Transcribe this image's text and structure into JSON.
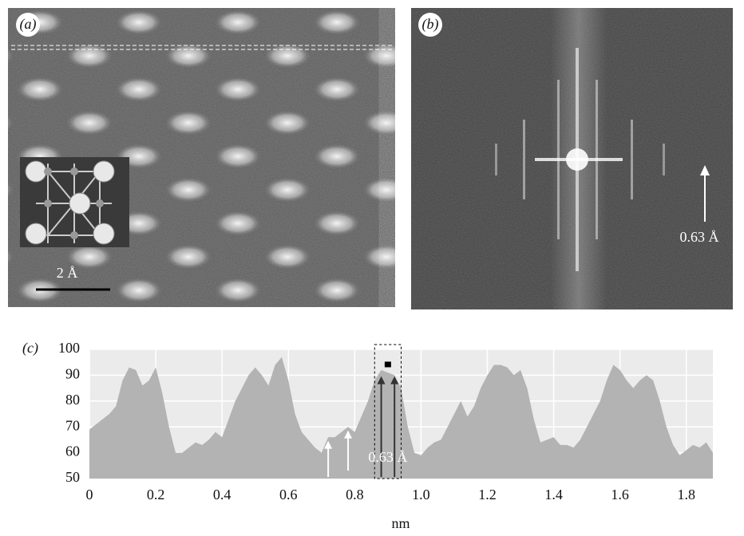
{
  "panels": {
    "a": {
      "label": "(a)",
      "scale": "2 Å"
    },
    "b": {
      "label": "(b)",
      "annotation": "0.63 Å"
    }
  },
  "chart_data": {
    "type": "area",
    "panel_label": "(c)",
    "x_label": "nm",
    "annotation": "0.63 Å",
    "color": "#b3b3b3",
    "grid": true,
    "x": [
      0,
      0.02,
      0.04,
      0.06,
      0.08,
      0.1,
      0.12,
      0.14,
      0.16,
      0.18,
      0.2,
      0.22,
      0.24,
      0.26,
      0.28,
      0.3,
      0.32,
      0.34,
      0.36,
      0.38,
      0.4,
      0.42,
      0.44,
      0.46,
      0.48,
      0.5,
      0.52,
      0.54,
      0.56,
      0.58,
      0.6,
      0.62,
      0.64,
      0.66,
      0.68,
      0.7,
      0.72,
      0.74,
      0.76,
      0.78,
      0.8,
      0.82,
      0.84,
      0.86,
      0.88,
      0.9,
      0.92,
      0.94,
      0.96,
      0.98,
      1.0,
      1.02,
      1.04,
      1.06,
      1.08,
      1.1,
      1.12,
      1.14,
      1.16,
      1.18,
      1.2,
      1.22,
      1.24,
      1.26,
      1.28,
      1.3,
      1.32,
      1.34,
      1.36,
      1.38,
      1.4,
      1.42,
      1.44,
      1.46,
      1.48,
      1.5,
      1.52,
      1.54,
      1.56,
      1.58,
      1.6,
      1.62,
      1.64,
      1.66,
      1.68,
      1.7,
      1.72,
      1.74,
      1.76,
      1.78,
      1.8,
      1.82,
      1.84,
      1.86,
      1.88
    ],
    "values": [
      69,
      71,
      73,
      75,
      78,
      88,
      93,
      92,
      86,
      88,
      93,
      83,
      70,
      60,
      60,
      62,
      64,
      63,
      65,
      68,
      66,
      73,
      80,
      85,
      90,
      93,
      90,
      86,
      94,
      97,
      88,
      75,
      68,
      65,
      62,
      60,
      66,
      66,
      68,
      70,
      68,
      74,
      80,
      88,
      92,
      91,
      90,
      85,
      70,
      60,
      59,
      62,
      64,
      65,
      70,
      75,
      80,
      74,
      78,
      85,
      90,
      94,
      94,
      93,
      90,
      92,
      85,
      73,
      64,
      65,
      66,
      63,
      63,
      62,
      65,
      70,
      75,
      80,
      88,
      94,
      92,
      88,
      85,
      88,
      90,
      88,
      80,
      70,
      63,
      59,
      61,
      63,
      62,
      64,
      60
    ],
    "xlim": [
      0,
      1.88
    ],
    "ylim": [
      50,
      100
    ],
    "xticks": [
      0,
      0.2,
      0.4,
      0.6,
      0.8,
      {
        "value": 1,
        "label": "1.0"
      },
      1.2,
      1.4,
      1.6,
      1.8
    ],
    "yticks": [
      50,
      60,
      70,
      80,
      90,
      100
    ]
  }
}
